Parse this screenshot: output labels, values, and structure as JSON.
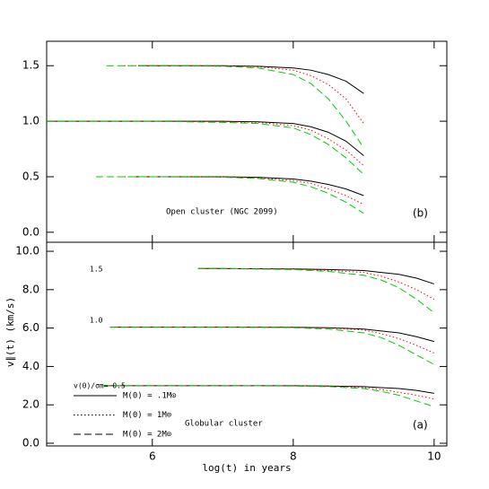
{
  "chart_data": [
    {
      "type": "line",
      "panel_label": "(b)",
      "annotation": "Open cluster (NGC 2099)",
      "xlim": [
        4.5,
        10.18
      ],
      "ylim": [
        -0.09,
        1.72
      ],
      "yticks": [
        {
          "value": 0,
          "label": "0.0"
        },
        0.5,
        {
          "value": 1,
          "label": "1.0"
        },
        1.5
      ],
      "series": [
        {
          "color": "#000000",
          "dash": "solid",
          "curves": [
            {
              "x": [
                5.8,
                6,
                7,
                7.5,
                8,
                8.25,
                8.5,
                8.75,
                9
              ],
              "values": [
                1.5,
                1.5,
                1.5,
                1.495,
                1.48,
                1.46,
                1.42,
                1.36,
                1.25
              ]
            },
            {
              "x": [
                4.5,
                6,
                7,
                7.5,
                8,
                8.25,
                8.5,
                8.75,
                9
              ],
              "values": [
                1,
                1,
                1,
                0.995,
                0.98,
                0.95,
                0.9,
                0.82,
                0.69
              ]
            },
            {
              "x": [
                5.7,
                6,
                7,
                7.5,
                8,
                8.25,
                8.5,
                8.75,
                9
              ],
              "values": [
                0.5,
                0.5,
                0.5,
                0.495,
                0.48,
                0.46,
                0.43,
                0.39,
                0.33
              ]
            }
          ]
        },
        {
          "color": "#ff0000",
          "dash": "dotted",
          "curves": [
            {
              "x": [
                5.6,
                6,
                7,
                7.5,
                8,
                8.25,
                8.5,
                8.75,
                9
              ],
              "values": [
                1.5,
                1.5,
                1.5,
                1.49,
                1.46,
                1.41,
                1.33,
                1.2,
                0.98
              ]
            },
            {
              "x": [
                4.5,
                6,
                7,
                7.5,
                8,
                8.25,
                8.5,
                8.75,
                9
              ],
              "values": [
                1,
                1,
                0.995,
                0.99,
                0.96,
                0.92,
                0.84,
                0.74,
                0.6
              ]
            },
            {
              "x": [
                5.5,
                6,
                7,
                7.5,
                8,
                8.25,
                8.5,
                8.75,
                9
              ],
              "values": [
                0.5,
                0.5,
                0.5,
                0.49,
                0.465,
                0.44,
                0.39,
                0.33,
                0.25
              ]
            }
          ]
        },
        {
          "color": "#00cc00",
          "dash": "dashed",
          "curves": [
            {
              "x": [
                5.35,
                6,
                7,
                7.5,
                8,
                8.25,
                8.5,
                8.75,
                9
              ],
              "values": [
                1.5,
                1.5,
                1.495,
                1.48,
                1.42,
                1.34,
                1.2,
                1.0,
                0.76
              ]
            },
            {
              "x": [
                4.5,
                6,
                7,
                7.5,
                8,
                8.25,
                8.5,
                8.75,
                9
              ],
              "values": [
                1,
                1,
                0.99,
                0.98,
                0.94,
                0.88,
                0.79,
                0.67,
                0.52
              ]
            },
            {
              "x": [
                5.2,
                6,
                7,
                7.5,
                8,
                8.25,
                8.5,
                8.75,
                9
              ],
              "values": [
                0.5,
                0.5,
                0.495,
                0.485,
                0.45,
                0.41,
                0.35,
                0.27,
                0.17
              ]
            }
          ]
        }
      ]
    },
    {
      "type": "line",
      "panel_label": "(a)",
      "annotation": "Globular cluster",
      "x_label": "log(t) in years",
      "y_label": "v∥(t)  (km/s)",
      "group_labels": [
        "1.5",
        "1.0"
      ],
      "legend_title": "v(0)/σm= 0.5",
      "xlim": [
        4.5,
        10.18
      ],
      "ylim": [
        -0.14,
        10.47
      ],
      "xticks": [
        6,
        8,
        10
      ],
      "yticks": [
        {
          "value": 0,
          "label": "0.0"
        },
        {
          "value": 2,
          "label": "2.0"
        },
        {
          "value": 4,
          "label": "4.0"
        },
        {
          "value": 6,
          "label": "6.0"
        },
        {
          "value": 8,
          "label": "8.0"
        },
        {
          "value": 10,
          "label": "10.0"
        }
      ],
      "series": [
        {
          "name": "M(0) = .1M⊙",
          "color": "#000000",
          "dash": "solid",
          "curves": [
            {
              "x": [
                6.65,
                7,
                8,
                8.5,
                9,
                9.25,
                9.5,
                9.75,
                10
              ],
              "values": [
                9.1,
                9.1,
                9.08,
                9.05,
                9.0,
                8.9,
                8.8,
                8.6,
                8.3
              ]
            },
            {
              "x": [
                5.4,
                7,
                8,
                8.5,
                9,
                9.25,
                9.5,
                9.75,
                10
              ],
              "values": [
                6.05,
                6.05,
                6.04,
                6.02,
                5.95,
                5.85,
                5.75,
                5.55,
                5.3
              ]
            },
            {
              "x": [
                5.3,
                7,
                8,
                8.5,
                9,
                9.25,
                9.5,
                9.75,
                10
              ],
              "values": [
                3,
                3,
                3,
                2.98,
                2.95,
                2.9,
                2.85,
                2.75,
                2.6
              ]
            }
          ]
        },
        {
          "name": "M(0) = 1M⊙",
          "color": "#ff0000",
          "dash": "dotted",
          "curves": [
            {
              "x": [
                6.65,
                7,
                8,
                8.5,
                9,
                9.25,
                9.5,
                9.75,
                10
              ],
              "values": [
                9.1,
                9.1,
                9.07,
                9.0,
                8.9,
                8.7,
                8.4,
                8.0,
                7.5
              ]
            },
            {
              "x": [
                5.4,
                7,
                8,
                8.5,
                9,
                9.25,
                9.5,
                9.75,
                10
              ],
              "values": [
                6.05,
                6.05,
                6.03,
                6.0,
                5.9,
                5.7,
                5.45,
                5.1,
                4.7
              ]
            },
            {
              "x": [
                5.3,
                7,
                8,
                8.5,
                9,
                9.25,
                9.5,
                9.75,
                10
              ],
              "values": [
                3,
                3,
                3,
                2.97,
                2.9,
                2.8,
                2.65,
                2.5,
                2.3
              ]
            }
          ]
        },
        {
          "name": "M(0) = 2M⊙",
          "color": "#00cc00",
          "dash": "dashed",
          "curves": [
            {
              "x": [
                6.65,
                7,
                8,
                8.5,
                9,
                9.25,
                9.5,
                9.75,
                10
              ],
              "values": [
                9.1,
                9.1,
                9.05,
                8.95,
                8.75,
                8.5,
                8.1,
                7.5,
                6.8
              ]
            },
            {
              "x": [
                5.4,
                7,
                8,
                8.5,
                9,
                9.25,
                9.5,
                9.75,
                10
              ],
              "values": [
                6.05,
                6.05,
                6.02,
                5.95,
                5.75,
                5.5,
                5.1,
                4.6,
                4.1
              ]
            },
            {
              "x": [
                5.3,
                7,
                8,
                8.5,
                9,
                9.25,
                9.5,
                9.75,
                10
              ],
              "values": [
                3,
                3,
                2.98,
                2.95,
                2.85,
                2.7,
                2.5,
                2.2,
                1.9
              ]
            }
          ]
        }
      ]
    }
  ]
}
